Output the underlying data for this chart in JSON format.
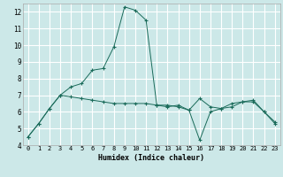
{
  "title": "",
  "xlabel": "Humidex (Indice chaleur)",
  "bg_color": "#cce8e8",
  "grid_color": "#ffffff",
  "line_color": "#1a6b5a",
  "xlim": [
    -0.5,
    23.5
  ],
  "ylim": [
    4,
    12.5
  ],
  "yticks": [
    4,
    5,
    6,
    7,
    8,
    9,
    10,
    11,
    12
  ],
  "xticks": [
    0,
    1,
    2,
    3,
    4,
    5,
    6,
    7,
    8,
    9,
    10,
    11,
    12,
    13,
    14,
    15,
    16,
    17,
    18,
    19,
    20,
    21,
    22,
    23
  ],
  "series1_x": [
    0,
    1,
    2,
    3,
    4,
    5,
    6,
    7,
    8,
    9,
    10,
    11,
    12,
    13,
    14,
    15,
    16,
    17,
    18,
    19,
    20,
    21,
    22,
    23
  ],
  "series1_y": [
    4.5,
    5.3,
    6.2,
    7.0,
    7.5,
    7.7,
    8.5,
    8.6,
    9.9,
    12.3,
    12.1,
    11.5,
    6.4,
    6.3,
    6.4,
    6.1,
    6.8,
    6.3,
    6.2,
    6.5,
    6.6,
    6.7,
    6.0,
    5.4
  ],
  "series2_x": [
    0,
    1,
    2,
    3,
    4,
    5,
    6,
    7,
    8,
    9,
    10,
    11,
    12,
    13,
    14,
    15,
    16,
    17,
    18,
    19,
    20,
    21,
    22,
    23
  ],
  "series2_y": [
    4.5,
    5.3,
    6.2,
    7.0,
    6.9,
    6.8,
    6.7,
    6.6,
    6.5,
    6.5,
    6.5,
    6.5,
    6.4,
    6.4,
    6.3,
    6.1,
    4.3,
    6.0,
    6.2,
    6.3,
    6.6,
    6.6,
    6.0,
    5.3
  ]
}
